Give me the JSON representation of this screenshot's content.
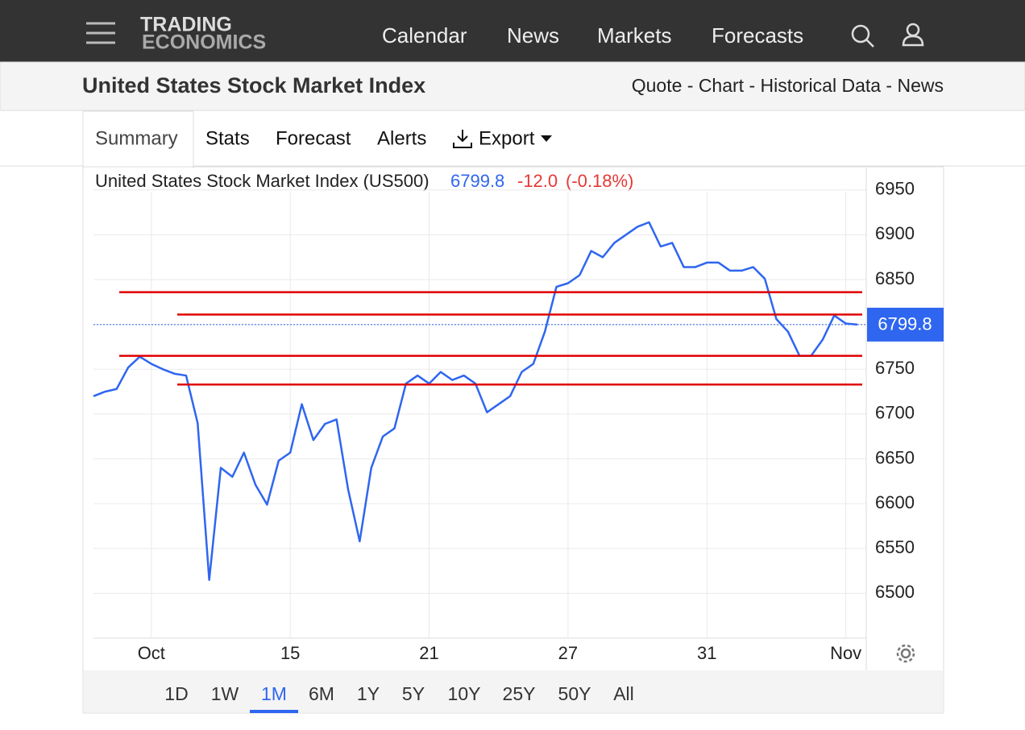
{
  "nav": {
    "logo_top": "TRADING",
    "logo_bottom": "ECONOMICS",
    "items": [
      "Calendar",
      "News",
      "Markets",
      "Forecasts"
    ]
  },
  "header": {
    "title": "United States Stock Market Index",
    "links": "Quote - Chart - Historical Data - News"
  },
  "tabs": [
    "Summary",
    "Stats",
    "Forecast",
    "Alerts",
    "Export"
  ],
  "quote": {
    "name": "United States Stock Market Index (US500)",
    "price": "6799.8",
    "change": "-12.0",
    "change_pct": "(-0.18%)"
  },
  "chart_data": {
    "type": "line",
    "categories": [
      null,
      null,
      null,
      null,
      null,
      "Oct",
      null,
      null,
      null,
      null,
      null,
      null,
      null,
      null,
      null,
      null,
      null,
      "15",
      null,
      null,
      null,
      null,
      null,
      null,
      null,
      null,
      null,
      null,
      null,
      "21",
      null,
      null,
      null,
      null,
      null,
      null,
      null,
      null,
      null,
      null,
      null,
      "27",
      null,
      null,
      null,
      null,
      null,
      null,
      null,
      null,
      null,
      null,
      null,
      "31",
      null,
      null,
      null,
      null,
      null,
      null,
      null,
      null,
      null,
      null,
      null,
      "Nov",
      null
    ],
    "series": [
      {
        "name": "US500",
        "color": "#2f66f0",
        "values": [
          6720,
          6725,
          6728,
          6752,
          6764,
          6756,
          6750,
          6745,
          6743,
          6690,
          6515,
          6640,
          6630,
          6657,
          6621,
          6599,
          6648,
          6657,
          6711,
          6671,
          6689,
          6694,
          6616,
          6558,
          6640,
          6675,
          6684,
          6734,
          6743,
          6734,
          6747,
          6738,
          6743,
          6734,
          6702,
          6711,
          6720,
          6747,
          6756,
          6792,
          6842,
          6846,
          6855,
          6882,
          6875,
          6891,
          6900,
          6909,
          6914,
          6887,
          6891,
          6864,
          6864,
          6869,
          6869,
          6860,
          6860,
          6864,
          6851,
          6806,
          6792,
          6765,
          6765,
          6783,
          6810,
          6801,
          6799.8
        ]
      }
    ],
    "levels": {
      "color": "#e00000",
      "values": [
        6836,
        6811,
        6765,
        6733
      ]
    },
    "ylim": [
      6450,
      6975
    ],
    "yticks": [
      6500,
      6550,
      6600,
      6650,
      6700,
      6750,
      6800,
      6850,
      6900,
      6950
    ],
    "grid": true
  },
  "ranges": [
    "1D",
    "1W",
    "1M",
    "6M",
    "1Y",
    "5Y",
    "10Y",
    "25Y",
    "50Y",
    "All"
  ]
}
